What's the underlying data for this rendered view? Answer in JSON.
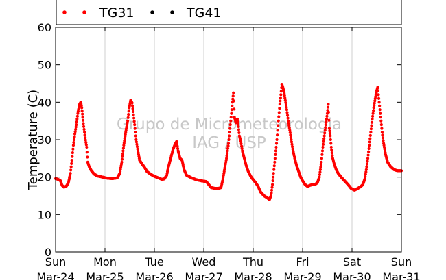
{
  "chart_data": {
    "type": "scatter",
    "title": "",
    "xlabel": "",
    "ylabel": "Temperature (C)",
    "ylim": [
      0,
      60
    ],
    "yticks": [
      0,
      10,
      20,
      30,
      40,
      50,
      60
    ],
    "xlim_days": [
      0,
      7
    ],
    "grid": "vertical",
    "legend_position": "top",
    "xticks": [
      {
        "day": 0,
        "weekday": "Sun",
        "date": "Mar-24"
      },
      {
        "day": 1,
        "weekday": "Mon",
        "date": "Mar-25"
      },
      {
        "day": 2,
        "weekday": "Tue",
        "date": "Mar-26"
      },
      {
        "day": 3,
        "weekday": "Wed",
        "date": "Mar-27"
      },
      {
        "day": 4,
        "weekday": "Thu",
        "date": "Mar-28"
      },
      {
        "day": 5,
        "weekday": "Fri",
        "date": "Mar-29"
      },
      {
        "day": 6,
        "weekday": "Sat",
        "date": "Mar-30"
      },
      {
        "day": 7,
        "weekday": "Sun",
        "date": "Mar-31"
      }
    ],
    "watermark": [
      "Grupo de Micrometeorologia",
      "IAG / USP"
    ],
    "series": [
      {
        "name": "TG31",
        "color": "#ff0000",
        "points": [
          [
            0.0,
            19.6
          ],
          [
            0.05,
            19.4
          ],
          [
            0.1,
            19.0
          ],
          [
            0.13,
            17.8
          ],
          [
            0.17,
            17.3
          ],
          [
            0.22,
            17.6
          ],
          [
            0.26,
            18.5
          ],
          [
            0.3,
            21.0
          ],
          [
            0.33,
            24.5
          ],
          [
            0.36,
            28.5
          ],
          [
            0.39,
            31.5
          ],
          [
            0.42,
            34.0
          ],
          [
            0.45,
            37.0
          ],
          [
            0.48,
            39.3
          ],
          [
            0.51,
            40.0
          ],
          [
            0.53,
            38.5
          ],
          [
            0.55,
            36.0
          ],
          [
            0.57,
            33.5
          ],
          [
            0.6,
            30.5
          ],
          [
            0.63,
            28.0
          ],
          [
            0.65,
            24.0
          ],
          [
            0.68,
            22.8
          ],
          [
            0.72,
            21.8
          ],
          [
            0.78,
            20.8
          ],
          [
            0.85,
            20.3
          ],
          [
            0.95,
            20.0
          ],
          [
            1.05,
            19.7
          ],
          [
            1.15,
            19.6
          ],
          [
            1.25,
            19.8
          ],
          [
            1.3,
            21.0
          ],
          [
            1.34,
            24.0
          ],
          [
            1.38,
            28.5
          ],
          [
            1.42,
            32.0
          ],
          [
            1.46,
            35.0
          ],
          [
            1.49,
            38.5
          ],
          [
            1.52,
            40.5
          ],
          [
            1.55,
            39.8
          ],
          [
            1.57,
            37.5
          ],
          [
            1.6,
            34.0
          ],
          [
            1.63,
            30.0
          ],
          [
            1.66,
            27.5
          ],
          [
            1.7,
            24.5
          ],
          [
            1.75,
            23.5
          ],
          [
            1.8,
            22.6
          ],
          [
            1.85,
            21.5
          ],
          [
            1.92,
            20.8
          ],
          [
            2.0,
            20.2
          ],
          [
            2.08,
            19.8
          ],
          [
            2.15,
            19.4
          ],
          [
            2.2,
            19.5
          ],
          [
            2.25,
            20.5
          ],
          [
            2.28,
            22.5
          ],
          [
            2.32,
            24.5
          ],
          [
            2.35,
            26.0
          ],
          [
            2.38,
            27.5
          ],
          [
            2.42,
            28.8
          ],
          [
            2.45,
            29.5
          ],
          [
            2.48,
            27.0
          ],
          [
            2.52,
            25.0
          ],
          [
            2.56,
            24.5
          ],
          [
            2.6,
            22.0
          ],
          [
            2.65,
            20.5
          ],
          [
            2.75,
            19.8
          ],
          [
            2.85,
            19.3
          ],
          [
            2.95,
            19.0
          ],
          [
            3.05,
            18.8
          ],
          [
            3.1,
            18.0
          ],
          [
            3.15,
            17.2
          ],
          [
            3.22,
            17.0
          ],
          [
            3.3,
            17.0
          ],
          [
            3.35,
            17.2
          ],
          [
            3.38,
            19.0
          ],
          [
            3.42,
            22.0
          ],
          [
            3.46,
            25.0
          ],
          [
            3.5,
            29.0
          ],
          [
            3.53,
            33.0
          ],
          [
            3.56,
            37.0
          ],
          [
            3.58,
            40.0
          ],
          [
            3.6,
            42.5
          ],
          [
            3.62,
            36.0
          ],
          [
            3.65,
            34.5
          ],
          [
            3.68,
            35.5
          ],
          [
            3.7,
            33.5
          ],
          [
            3.72,
            31.0
          ],
          [
            3.75,
            29.5
          ],
          [
            3.78,
            27.0
          ],
          [
            3.82,
            25.0
          ],
          [
            3.86,
            23.0
          ],
          [
            3.9,
            21.5
          ],
          [
            3.95,
            20.2
          ],
          [
            4.0,
            19.3
          ],
          [
            4.05,
            18.5
          ],
          [
            4.1,
            17.5
          ],
          [
            4.15,
            16.0
          ],
          [
            4.22,
            15.0
          ],
          [
            4.28,
            14.5
          ],
          [
            4.33,
            14.0
          ],
          [
            4.36,
            15.0
          ],
          [
            4.39,
            18.0
          ],
          [
            4.42,
            22.0
          ],
          [
            4.45,
            26.0
          ],
          [
            4.48,
            30.0
          ],
          [
            4.51,
            35.0
          ],
          [
            4.54,
            39.5
          ],
          [
            4.56,
            42.0
          ],
          [
            4.58,
            44.8
          ],
          [
            4.6,
            44.0
          ],
          [
            4.62,
            43.0
          ],
          [
            4.65,
            40.5
          ],
          [
            4.68,
            38.0
          ],
          [
            4.71,
            35.0
          ],
          [
            4.74,
            32.5
          ],
          [
            4.77,
            30.0
          ],
          [
            4.8,
            27.5
          ],
          [
            4.84,
            25.0
          ],
          [
            4.88,
            23.0
          ],
          [
            4.92,
            21.5
          ],
          [
            4.96,
            20.0
          ],
          [
            5.0,
            19.0
          ],
          [
            5.05,
            18.0
          ],
          [
            5.1,
            17.5
          ],
          [
            5.15,
            17.8
          ],
          [
            5.2,
            18.0
          ],
          [
            5.25,
            18.0
          ],
          [
            5.3,
            18.5
          ],
          [
            5.34,
            20.0
          ],
          [
            5.38,
            24.0
          ],
          [
            5.41,
            28.0
          ],
          [
            5.44,
            31.0
          ],
          [
            5.47,
            34.0
          ],
          [
            5.5,
            37.0
          ],
          [
            5.52,
            39.5
          ],
          [
            5.54,
            33.0
          ],
          [
            5.56,
            31.0
          ],
          [
            5.58,
            28.0
          ],
          [
            5.61,
            25.0
          ],
          [
            5.64,
            23.5
          ],
          [
            5.68,
            22.0
          ],
          [
            5.72,
            21.0
          ],
          [
            5.78,
            20.0
          ],
          [
            5.85,
            19.0
          ],
          [
            5.92,
            18.0
          ],
          [
            5.98,
            17.0
          ],
          [
            6.05,
            16.5
          ],
          [
            6.12,
            17.0
          ],
          [
            6.18,
            17.5
          ],
          [
            6.22,
            18.0
          ],
          [
            6.26,
            19.5
          ],
          [
            6.29,
            22.0
          ],
          [
            6.32,
            25.0
          ],
          [
            6.35,
            28.5
          ],
          [
            6.38,
            32.0
          ],
          [
            6.41,
            35.5
          ],
          [
            6.44,
            38.5
          ],
          [
            6.47,
            41.0
          ],
          [
            6.5,
            43.0
          ],
          [
            6.52,
            44.0
          ],
          [
            6.55,
            40.0
          ],
          [
            6.58,
            36.0
          ],
          [
            6.61,
            32.0
          ],
          [
            6.64,
            29.0
          ],
          [
            6.68,
            26.0
          ],
          [
            6.72,
            24.0
          ],
          [
            6.78,
            22.8
          ],
          [
            6.85,
            22.0
          ],
          [
            6.92,
            21.7
          ],
          [
            7.0,
            21.7
          ]
        ]
      },
      {
        "name": "TG41",
        "color": "#000000",
        "points": []
      }
    ]
  }
}
